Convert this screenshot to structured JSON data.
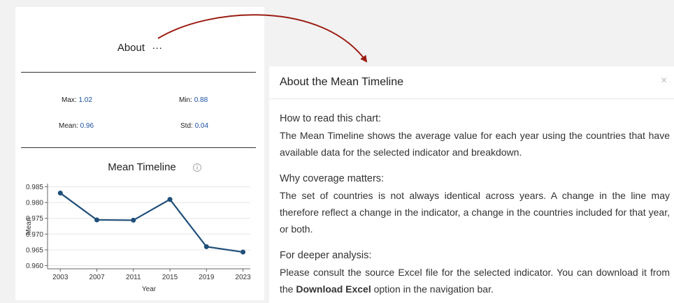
{
  "about": {
    "title": "About",
    "menu": "···"
  },
  "stats": [
    {
      "label": "Max:",
      "value": 1.02
    },
    {
      "label": "Min:",
      "value": 0.88
    },
    {
      "label": "Mean:",
      "value": 0.96
    },
    {
      "label": "Std:",
      "value": 0.04
    }
  ],
  "chart_data": {
    "type": "line",
    "title": "Mean Timeline",
    "x": [
      2003,
      2007,
      2011,
      2015,
      2019,
      2023
    ],
    "values": [
      0.983,
      0.9745,
      0.9744,
      0.981,
      0.966,
      0.9643
    ],
    "color": "#1f4e79",
    "xlim": [
      2001.6,
      2023.8
    ],
    "xticks": [
      2003,
      2007,
      2011,
      2015,
      2019,
      2023
    ],
    "ylim": [
      0.959,
      0.986
    ],
    "yticks": [
      0.985,
      {
        "value": 0.98,
        "label": "0.980"
      },
      0.975,
      {
        "value": 0.97,
        "label": "0.970"
      },
      0.965,
      {
        "value": 0.96,
        "label": "0.960"
      }
    ],
    "xlabel": "Year",
    "ylabel": "Mean",
    "grid": true
  },
  "modal": {
    "title": "About the Mean Timeline",
    "close": "×",
    "sections": [
      {
        "heading": "How to read this chart:",
        "body": "The Mean Timeline shows the average value for each year using the countries that have available data for the selected indicator and breakdown."
      },
      {
        "heading": "Why coverage matters:",
        "body": "The set of countries is not always identical across years. A change in the line may therefore reflect a change in the indicator, a change in the countries included for that year, or both."
      },
      {
        "heading": "For deeper analysis:",
        "body": "Please consult the source Excel file for the selected indicator. You can download it from the ",
        "bold": "Download Excel",
        "after": " option in the navigation bar."
      }
    ]
  }
}
